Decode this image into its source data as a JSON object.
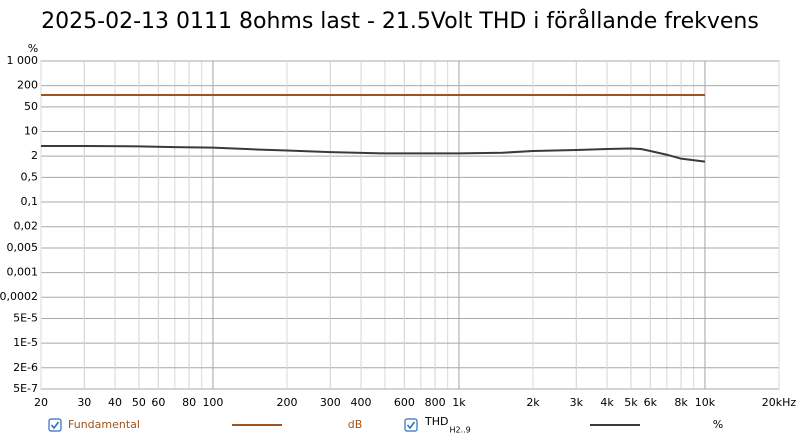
{
  "chart_data": {
    "type": "line",
    "title": "2025-02-13 0111 8ohms last - 21.5Volt THD i förållande frekvens",
    "ylabel": "%",
    "log_x": true,
    "log_y": true,
    "grid": true,
    "xlim": [
      20,
      20000
    ],
    "xticks": [
      20,
      30,
      40,
      50,
      60,
      80,
      100,
      200,
      300,
      400,
      600,
      800,
      {
        "value": 1000,
        "label": "1k"
      },
      {
        "value": 2000,
        "label": "2k"
      },
      {
        "value": 3000,
        "label": "3k"
      },
      {
        "value": 4000,
        "label": "4k"
      },
      {
        "value": 5000,
        "label": "5k"
      },
      {
        "value": 6000,
        "label": "6k"
      },
      {
        "value": 8000,
        "label": "8k"
      },
      {
        "value": 10000,
        "label": "10k"
      },
      {
        "value": 20000,
        "label": "20kHz"
      }
    ],
    "ylim": [
      5e-07,
      1000
    ],
    "yticks": [
      {
        "value": 1000,
        "label": "1 000"
      },
      200,
      50,
      10,
      2,
      {
        "value": 0.5,
        "label": "0,5"
      },
      {
        "value": 0.1,
        "label": "0,1"
      },
      {
        "value": 0.02,
        "label": "0,02"
      },
      {
        "value": 0.005,
        "label": "0,005"
      },
      {
        "value": 0.001,
        "label": "0,001"
      },
      {
        "value": 0.0002,
        "label": "0,0002"
      },
      {
        "value": 5e-05,
        "label": "5E-5"
      },
      {
        "value": 1e-05,
        "label": "1E-5"
      },
      {
        "value": 2e-06,
        "label": "2E-6"
      },
      {
        "value": 5e-07,
        "label": "5E-7"
      }
    ],
    "series": [
      {
        "name": "Fundamental",
        "unit": "dB",
        "color": "#a0521e",
        "x": [
          20,
          10000
        ],
        "values": [
          109,
          109
        ]
      },
      {
        "name": "THD",
        "subscript": "H2..9",
        "unit": "%",
        "color": "#3a3a3a",
        "x": [
          20,
          30,
          50,
          70,
          100,
          150,
          200,
          300,
          500,
          700,
          1000,
          1500,
          2000,
          3000,
          4000,
          5000,
          5500,
          6000,
          7000,
          8000,
          10000
        ],
        "values": [
          3.9,
          3.9,
          3.8,
          3.6,
          3.5,
          3.1,
          2.9,
          2.6,
          2.4,
          2.4,
          2.4,
          2.5,
          2.8,
          3.0,
          3.2,
          3.3,
          3.2,
          2.8,
          2.2,
          1.7,
          1.4
        ]
      }
    ]
  }
}
